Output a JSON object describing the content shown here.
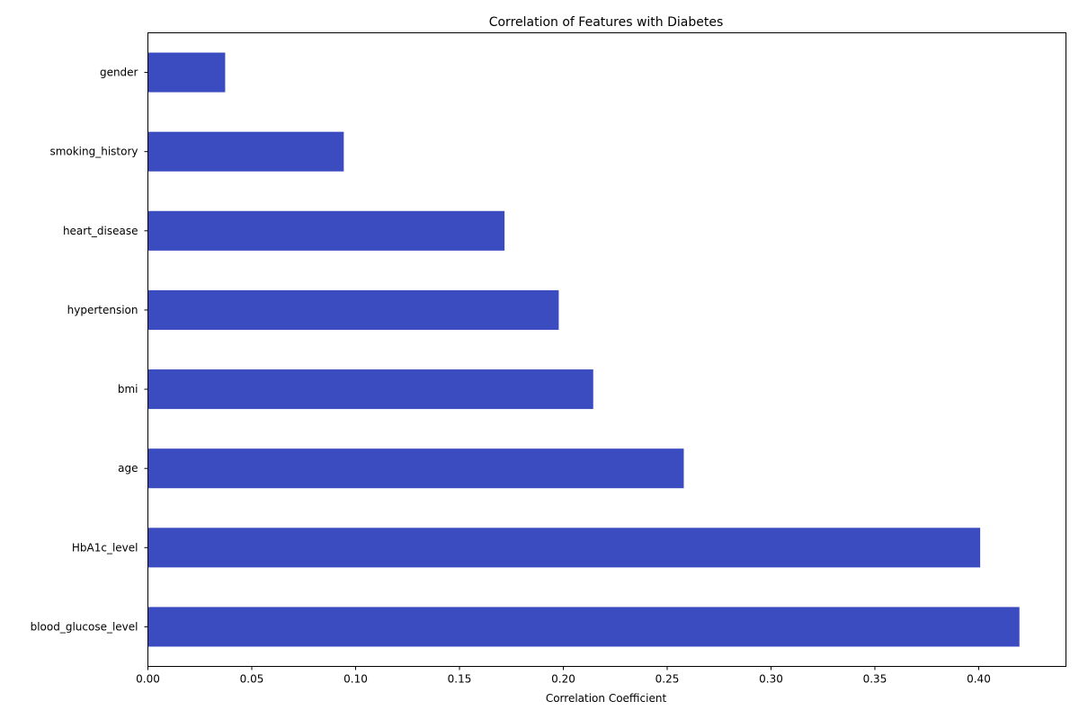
{
  "chart_data": {
    "type": "bar",
    "orientation": "horizontal",
    "title": "Correlation of Features with Diabetes",
    "xlabel": "Correlation Coefficient",
    "ylabel": "",
    "categories": [
      "blood_glucose_level",
      "HbA1c_level",
      "age",
      "bmi",
      "hypertension",
      "heart_disease",
      "smoking_history",
      "gender"
    ],
    "values": [
      0.4196,
      0.4007,
      0.258,
      0.2144,
      0.1978,
      0.1717,
      0.0943,
      0.0372
    ],
    "xlim": [
      0,
      0.442
    ],
    "xticks": [
      0.0,
      0.05,
      0.1,
      0.15,
      0.2,
      0.25,
      0.3,
      0.35,
      0.4
    ],
    "xtick_labels": [
      "0.00",
      "0.05",
      "0.10",
      "0.15",
      "0.20",
      "0.25",
      "0.30",
      "0.35",
      "0.40"
    ],
    "bar_color": "#3b4cc0",
    "grid": false,
    "legend": "none"
  }
}
